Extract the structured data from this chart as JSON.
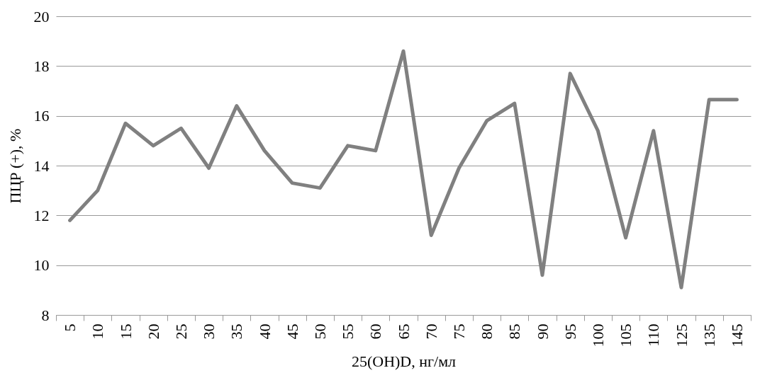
{
  "chart_data": {
    "type": "line",
    "xlabel": "25(OH)D, нг/мл",
    "ylabel": "ПЦР (+), %",
    "categories": [
      "5",
      "10",
      "15",
      "20",
      "25",
      "30",
      "35",
      "40",
      "45",
      "50",
      "55",
      "60",
      "65",
      "70",
      "75",
      "80",
      "85",
      "90",
      "95",
      "100",
      "105",
      "110",
      "125",
      "135",
      "145"
    ],
    "series": [
      {
        "color": "#808080",
        "values": [
          11.8,
          13.0,
          15.7,
          14.8,
          15.5,
          13.9,
          16.4,
          14.6,
          13.3,
          13.1,
          14.8,
          14.6,
          18.6,
          11.2,
          13.9,
          15.8,
          16.5,
          9.6,
          17.7,
          15.4,
          11.1,
          15.4,
          9.1,
          16.65,
          16.65
        ]
      }
    ],
    "ylim": [
      8,
      20
    ],
    "yticks": [
      8,
      10,
      12,
      14,
      16,
      18,
      20
    ],
    "grid": "y",
    "legend": false,
    "marker": "none",
    "line_style": "solid"
  }
}
